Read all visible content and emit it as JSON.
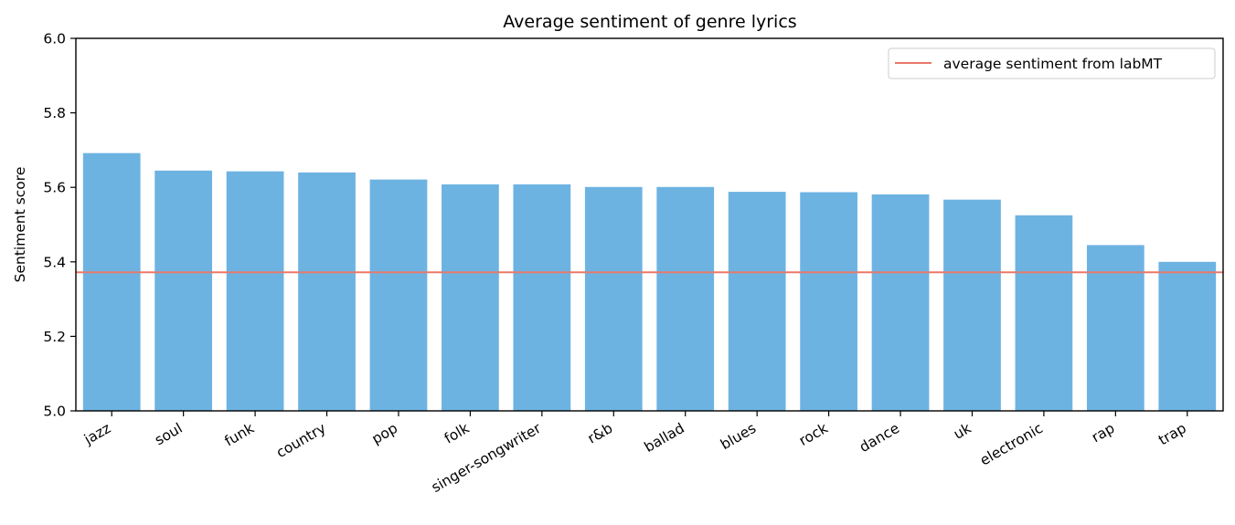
{
  "chart_data": {
    "type": "bar",
    "title": "Average sentiment of genre lyrics",
    "xlabel": "",
    "ylabel": "Sentiment score",
    "ylim": [
      5.0,
      6.0
    ],
    "yticks": [
      "5.0",
      "5.2",
      "5.4",
      "5.6",
      "5.8",
      "6.0"
    ],
    "categories": [
      "jazz",
      "soul",
      "funk",
      "country",
      "pop",
      "folk",
      "singer-songwriter",
      "r&b",
      "ballad",
      "blues",
      "rock",
      "dance",
      "uk",
      "electronic",
      "rap",
      "trap"
    ],
    "values": [
      5.692,
      5.645,
      5.643,
      5.64,
      5.621,
      5.608,
      5.608,
      5.601,
      5.601,
      5.588,
      5.587,
      5.581,
      5.567,
      5.525,
      5.445,
      5.4
    ],
    "bar_color": "#6db3e2",
    "reference_line": {
      "label": "average sentiment from labMT",
      "value": 5.372,
      "color": "#e8796b"
    },
    "legend_position": "top-right",
    "grid": false
  }
}
